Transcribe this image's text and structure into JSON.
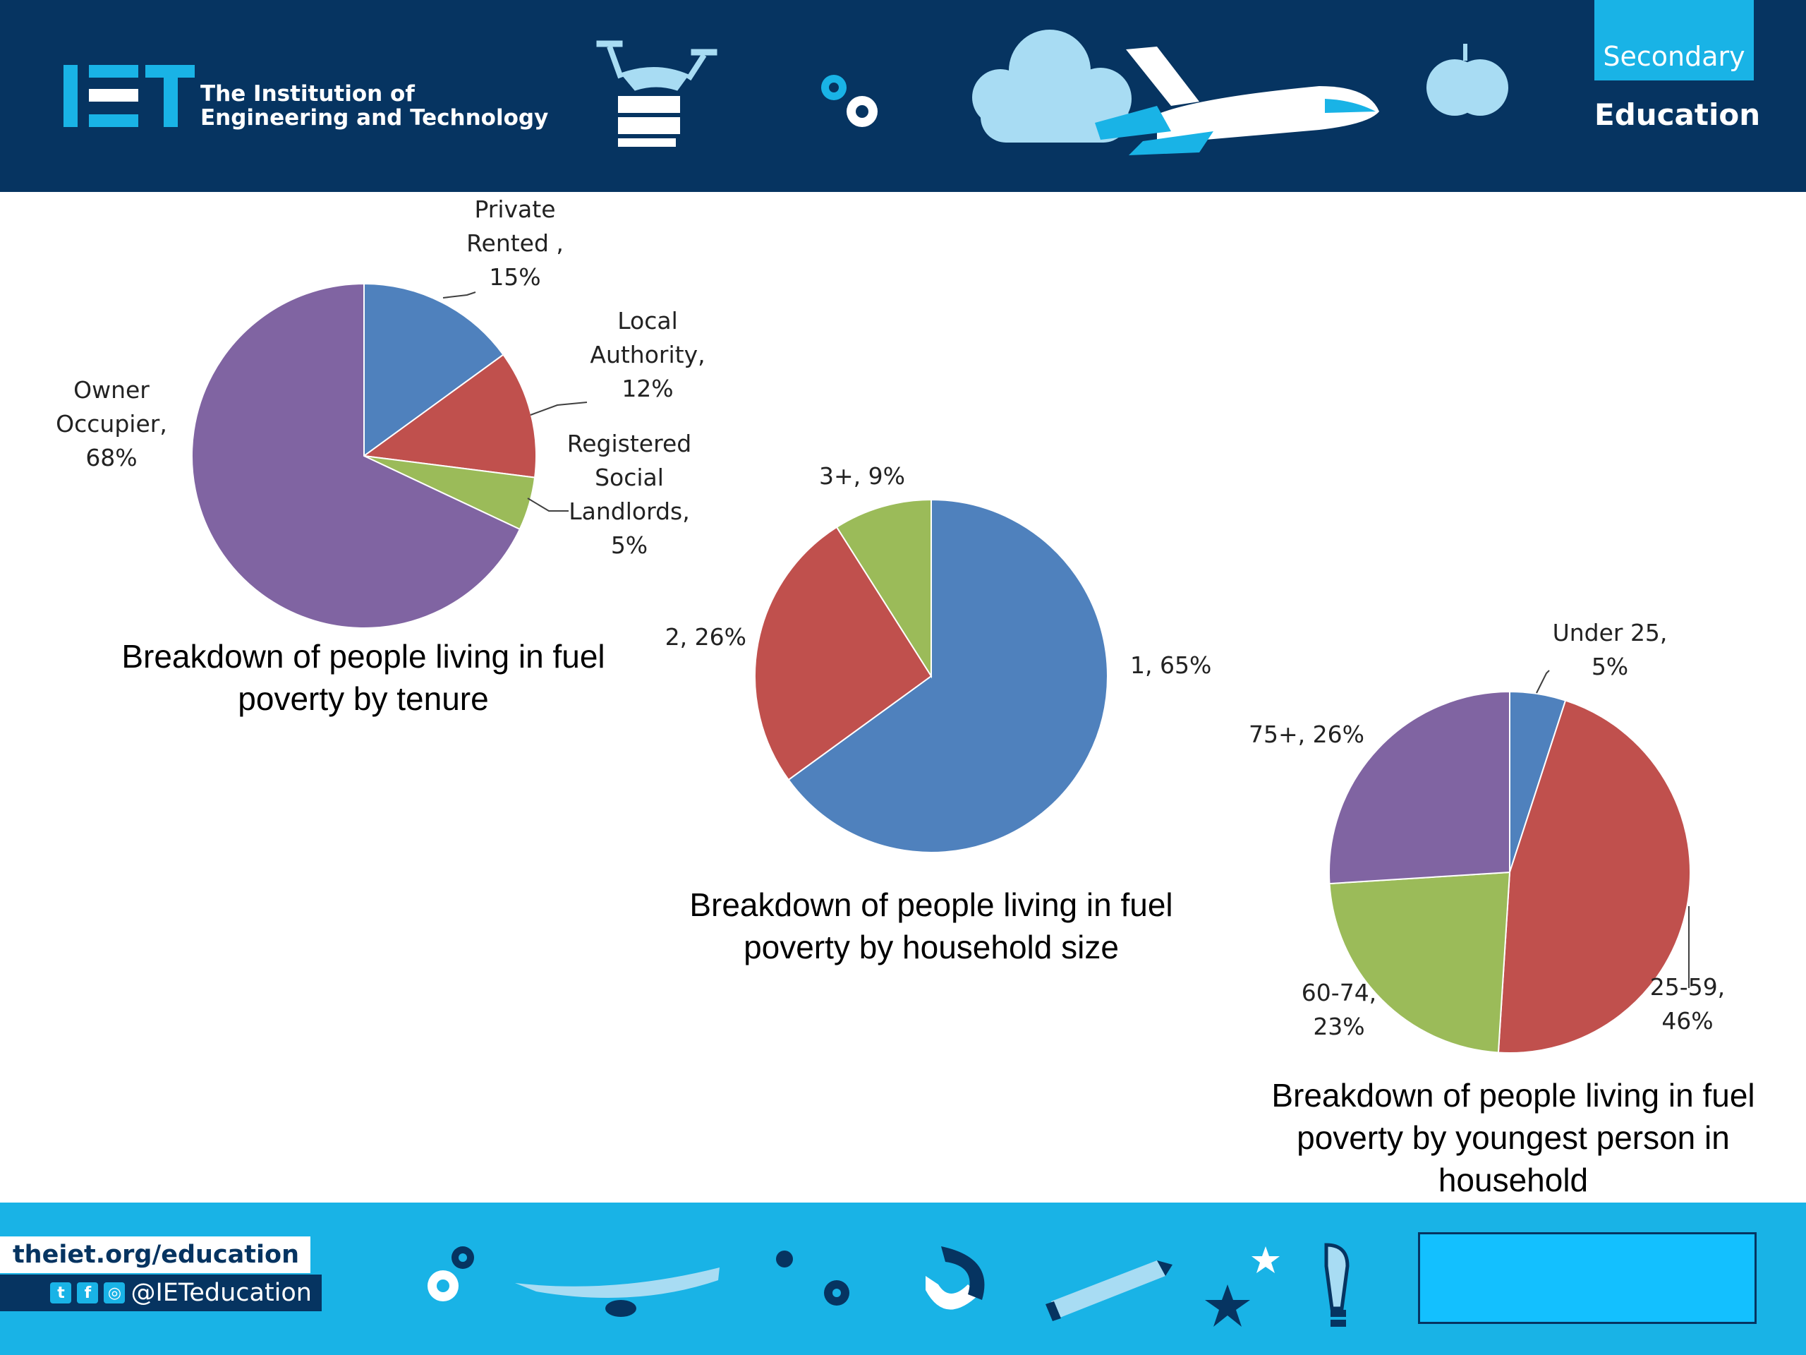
{
  "header": {
    "org_line1": "The Institution of",
    "org_line2": "Engineering and Technology",
    "logo_lettering": "IET",
    "badge_top": "Secondary",
    "badge_bottom": "Education"
  },
  "footer": {
    "url": "theiet.org/education",
    "social_handle": "@IETeducation"
  },
  "colors": {
    "navy": "#063461",
    "cyan": "#19b3e6",
    "blue": "#4f81bd",
    "red": "#c0504d",
    "green": "#9bbb59",
    "purple": "#8064a2"
  },
  "chart_data": [
    {
      "type": "pie",
      "title": "Breakdown of people living in fuel poverty by tenure",
      "categories": [
        "Private Rented",
        "Local Authority",
        "Registered Social Landlords",
        "Owner Occupier"
      ],
      "values": [
        15,
        12,
        5,
        68
      ],
      "unit": "%",
      "labels": [
        [
          "Private",
          "Rented ,",
          "15%"
        ],
        [
          "Local",
          "Authority,",
          "12%"
        ],
        [
          "Registered",
          "Social",
          "Landlords,",
          "5%"
        ],
        [
          "Owner",
          "Occupier,",
          "68%"
        ]
      ]
    },
    {
      "type": "pie",
      "title": "Breakdown of people living in fuel poverty by household size",
      "categories": [
        "1",
        "2",
        "3+"
      ],
      "values": [
        65,
        26,
        9
      ],
      "unit": "%",
      "labels": [
        [
          "1, 65%"
        ],
        [
          "2, 26%"
        ],
        [
          "3+, 9%"
        ]
      ]
    },
    {
      "type": "pie",
      "title": "Breakdown of people living in fuel poverty by youngest person in household",
      "categories": [
        "Under 25",
        "25-59",
        "60-74",
        "75+"
      ],
      "values": [
        5,
        46,
        23,
        26
      ],
      "unit": "%",
      "labels": [
        [
          "Under 25,",
          "5%"
        ],
        [
          "25-59,",
          "46%"
        ],
        [
          "60-74,",
          "23%"
        ],
        [
          "75+, 26%"
        ]
      ]
    }
  ]
}
